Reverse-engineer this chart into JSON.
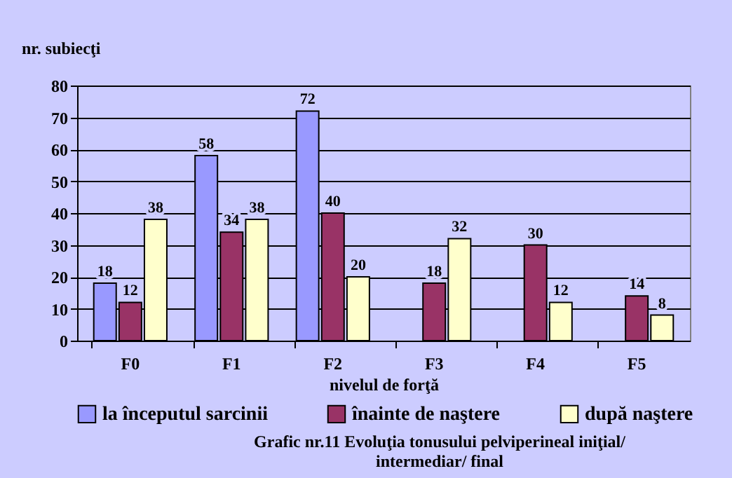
{
  "chart_data": {
    "type": "bar",
    "title": "Grafic nr.11 Evoluţia tonusului pelviperineal iniţial/ intermediar/ final",
    "xlabel": "nivelul de forţă",
    "ylabel": "nr. subiecţi",
    "categories": [
      "F0",
      "F1",
      "F2",
      "F3",
      "F4",
      "F5"
    ],
    "series": [
      {
        "name": "la începutul sarcinii",
        "color": "#9999ff",
        "values": [
          18,
          58,
          72,
          null,
          null,
          null
        ]
      },
      {
        "name": "înainte de naştere",
        "color": "#993366",
        "values": [
          12,
          34,
          40,
          18,
          30,
          14
        ]
      },
      {
        "name": "după naştere",
        "color": "#ffffcc",
        "values": [
          38,
          38,
          20,
          32,
          12,
          8
        ]
      }
    ],
    "ylim": [
      0,
      80
    ],
    "yticks": [
      0,
      10,
      20,
      30,
      40,
      50,
      60,
      70,
      80
    ],
    "grid": "y",
    "legend": "bottom",
    "data_labels": true
  }
}
